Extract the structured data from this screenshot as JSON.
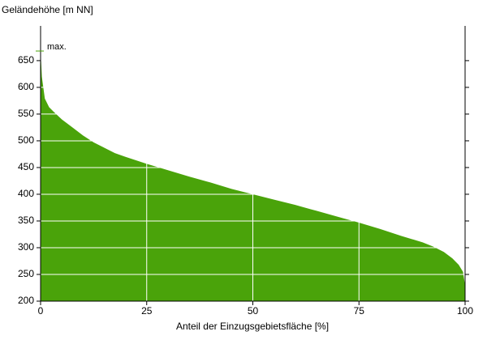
{
  "chart_data": {
    "type": "area",
    "y_label": "Geländehöhe [m NN]",
    "x_label": "Anteil der Einzugsgebietsfläche [%]",
    "annotation": "max.",
    "color": "#4aa30a",
    "x": [
      0,
      0.3,
      1,
      2,
      3,
      5,
      7.5,
      10,
      12.5,
      15,
      17.5,
      20,
      25,
      30,
      35,
      40,
      45,
      50,
      55,
      60,
      65,
      70,
      75,
      80,
      85,
      90,
      92.5,
      95,
      97,
      98.5,
      99.5,
      100
    ],
    "values": [
      668,
      620,
      579,
      563,
      555,
      540,
      525,
      510,
      497,
      487,
      477,
      470,
      457,
      445,
      433,
      422,
      410,
      400,
      390,
      380,
      369,
      358,
      347,
      335,
      322,
      310,
      302,
      292,
      280,
      268,
      255,
      230
    ],
    "xlim": [
      0,
      100
    ],
    "xticks": [
      0,
      25,
      50,
      75,
      100
    ],
    "ylim": [
      200,
      715
    ],
    "yticks": [
      200,
      250,
      300,
      350,
      400,
      450,
      500,
      550,
      600,
      650
    ],
    "grid": true
  }
}
